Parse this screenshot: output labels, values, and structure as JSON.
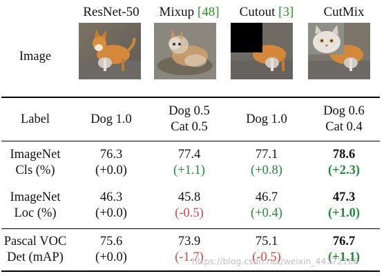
{
  "header": {
    "corner": "",
    "columns": [
      {
        "name": "ResNet-50",
        "ref": ""
      },
      {
        "name": "Mixup ",
        "ref": "[48]"
      },
      {
        "name": "Cutout ",
        "ref": "[3]"
      },
      {
        "name": "CutMix",
        "ref": ""
      }
    ]
  },
  "image_row": {
    "label": "Image",
    "icons": [
      "dog-photo-icon",
      "mixup-dog-cat-photo-icon",
      "cutout-dog-photo-icon",
      "cutmix-dog-cat-photo-icon"
    ]
  },
  "label_row": {
    "label": "Label",
    "cells": [
      {
        "line1": "Dog 1.0",
        "line2": ""
      },
      {
        "line1": "Dog 0.5",
        "line2": "Cat 0.5"
      },
      {
        "line1": "Dog 1.0",
        "line2": ""
      },
      {
        "line1": "Dog 0.6",
        "line2": "Cat 0.4"
      }
    ]
  },
  "metric_rows": [
    {
      "label_line1": "ImageNet",
      "label_line2": "Cls (%)",
      "cells": [
        {
          "value": "76.3",
          "delta": "(+0.0)"
        },
        {
          "value": "77.4",
          "delta": "(+1.1)"
        },
        {
          "value": "77.1",
          "delta": "(+0.8)"
        },
        {
          "value": "78.6",
          "delta": "(+2.3)"
        }
      ]
    },
    {
      "label_line1": "ImageNet",
      "label_line2": "Loc (%)",
      "cells": [
        {
          "value": "46.3",
          "delta": "(+0.0)"
        },
        {
          "value": "45.8",
          "delta": "(-0.5)"
        },
        {
          "value": "46.7",
          "delta": "(+0.4)"
        },
        {
          "value": "47.3",
          "delta": "(+1.0)"
        }
      ]
    },
    {
      "label_line1": "Pascal VOC",
      "label_line2": "Det (mAP)",
      "cells": [
        {
          "value": "75.6",
          "delta": "(+0.0)"
        },
        {
          "value": "73.9",
          "delta": "(-1.7)"
        },
        {
          "value": "75.1",
          "delta": "(-0.5)"
        },
        {
          "value": "76.7",
          "delta": "(+1.1)"
        }
      ]
    }
  ],
  "watermark": "https://blog.csdn.net/weixin_44372168",
  "colors": {
    "positive_delta": "#1f8a3a",
    "negative_delta": "#d84545",
    "reference_link": "#1f9a1f",
    "rule": "#000000"
  }
}
